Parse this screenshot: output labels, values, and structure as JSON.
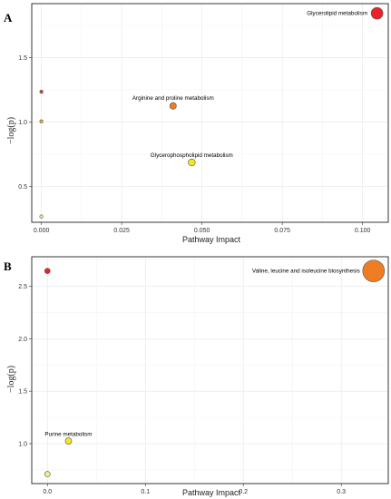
{
  "chart_data": [
    {
      "type": "scatter",
      "panel_label": "A",
      "xlabel": "Pathway Impact",
      "ylabel": "−log(p)",
      "xlim": [
        -0.003,
        0.108
      ],
      "ylim": [
        0.22,
        1.92
      ],
      "x_ticks": [
        0,
        0.025,
        0.05,
        0.075,
        0.1
      ],
      "x_tick_labels": [
        "0.000",
        "0.025",
        "0.050",
        "0.075",
        "0.100"
      ],
      "y_ticks": [
        0.5,
        1.0,
        1.5
      ],
      "y_tick_labels": [
        "0.5",
        "1.0",
        "1.5"
      ],
      "grid": true,
      "points": [
        {
          "x": 0.1045,
          "y": 1.845,
          "size": 0.105,
          "color": "#e8232a",
          "label": "Glycerolipid metabolism"
        },
        {
          "x": 0.041,
          "y": 1.125,
          "size": 0.041,
          "color": "#f07d22",
          "label": "Arginine and proline metabolism"
        },
        {
          "x": 0.0468,
          "y": 0.685,
          "size": 0.047,
          "color": "#f2e81a",
          "label": "Glycerophospholipid metabolism"
        },
        {
          "x": 0.0,
          "y": 1.235,
          "size": 0.0,
          "color": "#e0402a",
          "label": ""
        },
        {
          "x": 0.0,
          "y": 1.005,
          "size": 0.0,
          "color": "#f5a623",
          "label": ""
        },
        {
          "x": 0.0,
          "y": 0.265,
          "size": 0.0,
          "color": "#f3ee86",
          "label": ""
        }
      ]
    },
    {
      "type": "scatter",
      "panel_label": "B",
      "xlabel": "Pathway Impact",
      "ylabel": "−log(p)",
      "xlim": [
        -0.016,
        0.348
      ],
      "ylim": [
        0.62,
        2.78
      ],
      "x_ticks": [
        0,
        0.1,
        0.2,
        0.3
      ],
      "x_tick_labels": [
        "0.0",
        "0.1",
        "0.2",
        "0.3"
      ],
      "y_ticks": [
        1.0,
        1.5,
        2.0,
        2.5
      ],
      "y_tick_labels": [
        "1.0",
        "1.5",
        "2.0",
        "2.5"
      ],
      "grid": true,
      "points": [
        {
          "x": 0.333,
          "y": 2.645,
          "size": 0.333,
          "color": "#f07d22",
          "label": "Valine, leucine and isoleucine biosynthesis"
        },
        {
          "x": 0.0,
          "y": 2.645,
          "size": 0.0,
          "color": "#e8232a",
          "label": ""
        },
        {
          "x": 0.0215,
          "y": 1.025,
          "size": 0.021,
          "color": "#f2e81a",
          "label": "Purine metabolism"
        },
        {
          "x": 0.0,
          "y": 0.71,
          "size": 0.0,
          "color": "#f3ee86",
          "label": ""
        }
      ]
    }
  ]
}
